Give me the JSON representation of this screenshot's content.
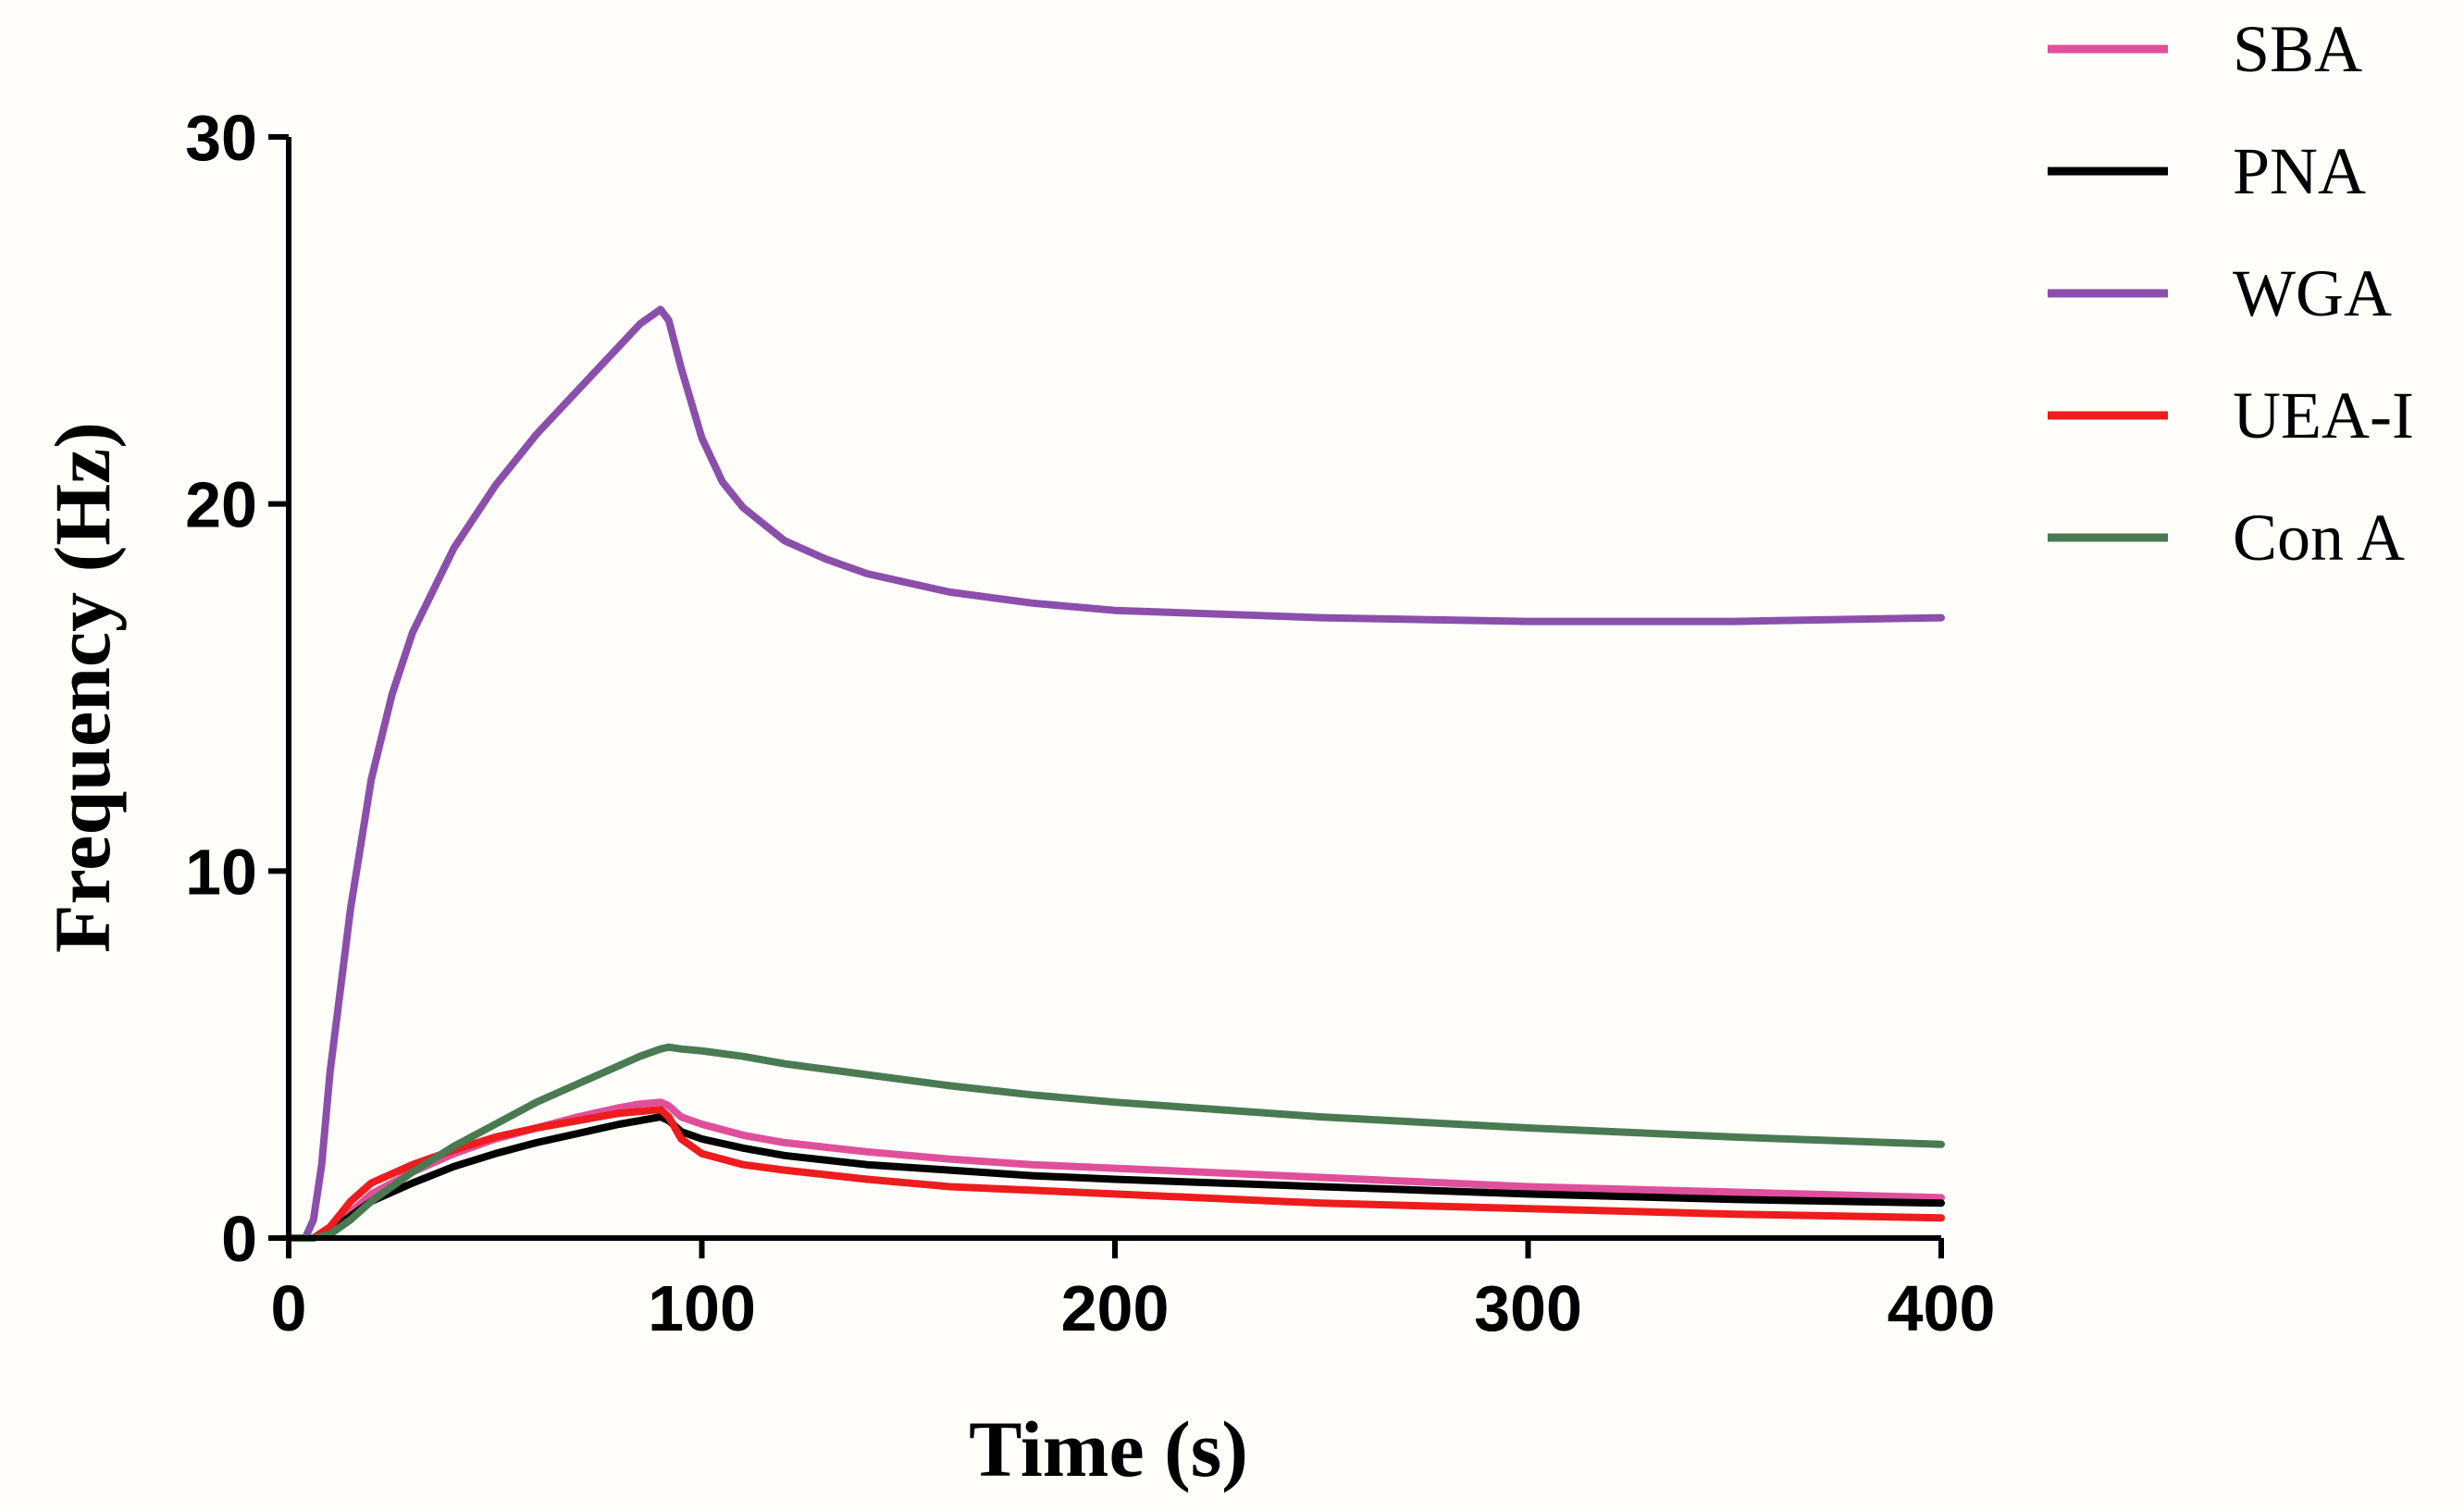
{
  "chart_data": {
    "type": "line",
    "title": "",
    "xlabel": "Time (s)",
    "ylabel": "Frequency (Hz)",
    "xlim": [
      0,
      400
    ],
    "ylim": [
      0,
      30
    ],
    "xticks": [
      0,
      100,
      200,
      300,
      400
    ],
    "yticks": [
      0,
      10,
      20,
      30
    ],
    "xtick_labels": [
      "0",
      "100",
      "200",
      "300",
      "400"
    ],
    "ytick_labels": [
      "0",
      "10",
      "20",
      "30"
    ],
    "grid": false,
    "legend_position": "top-right",
    "series": [
      {
        "name": "SBA",
        "color": "#e0509a",
        "x": [
          0,
          6,
          10,
          15,
          20,
          30,
          40,
          50,
          60,
          70,
          80,
          85,
          90,
          92,
          95,
          100,
          110,
          120,
          140,
          160,
          180,
          200,
          250,
          300,
          350,
          400
        ],
        "y": [
          0,
          0,
          0.2,
          0.7,
          1.2,
          1.8,
          2.3,
          2.7,
          3.0,
          3.3,
          3.55,
          3.65,
          3.7,
          3.6,
          3.3,
          3.1,
          2.8,
          2.6,
          2.35,
          2.15,
          2.0,
          1.9,
          1.65,
          1.4,
          1.25,
          1.1
        ]
      },
      {
        "name": "PNA",
        "color": "#000000",
        "x": [
          0,
          6,
          10,
          15,
          20,
          30,
          40,
          50,
          60,
          70,
          80,
          85,
          90,
          92,
          95,
          100,
          110,
          120,
          140,
          160,
          180,
          200,
          250,
          300,
          350,
          400
        ],
        "y": [
          0,
          0,
          0.2,
          0.6,
          1.0,
          1.5,
          1.95,
          2.3,
          2.6,
          2.85,
          3.1,
          3.2,
          3.3,
          3.2,
          2.9,
          2.7,
          2.45,
          2.25,
          2.0,
          1.85,
          1.7,
          1.6,
          1.4,
          1.2,
          1.05,
          0.95
        ]
      },
      {
        "name": "WGA",
        "color": "#8b4fab",
        "x": [
          0,
          4,
          6,
          8,
          10,
          15,
          20,
          25,
          30,
          40,
          50,
          60,
          70,
          80,
          85,
          90,
          92,
          95,
          100,
          105,
          110,
          120,
          130,
          140,
          160,
          180,
          200,
          250,
          300,
          350,
          400
        ],
        "y": [
          0,
          0,
          0.5,
          2.0,
          4.5,
          9.0,
          12.5,
          14.8,
          16.5,
          18.8,
          20.5,
          21.9,
          23.1,
          24.3,
          24.9,
          25.3,
          25.0,
          23.7,
          21.8,
          20.6,
          19.9,
          19.0,
          18.5,
          18.1,
          17.6,
          17.3,
          17.1,
          16.9,
          16.8,
          16.8,
          16.9
        ]
      },
      {
        "name": "UEA-I",
        "color": "#ee1c1c",
        "x": [
          0,
          6,
          10,
          15,
          20,
          30,
          40,
          50,
          60,
          70,
          80,
          85,
          90,
          92,
          95,
          100,
          110,
          120,
          140,
          160,
          180,
          200,
          250,
          300,
          350,
          400
        ],
        "y": [
          0,
          0,
          0.3,
          1.0,
          1.5,
          2.0,
          2.4,
          2.75,
          3.0,
          3.2,
          3.4,
          3.45,
          3.5,
          3.3,
          2.7,
          2.3,
          2.0,
          1.85,
          1.6,
          1.4,
          1.3,
          1.2,
          0.95,
          0.8,
          0.65,
          0.55
        ]
      },
      {
        "name": "Con A",
        "color": "#4a7a52",
        "x": [
          0,
          6,
          10,
          15,
          20,
          30,
          40,
          50,
          60,
          70,
          80,
          85,
          90,
          92,
          95,
          100,
          110,
          120,
          140,
          160,
          180,
          200,
          250,
          300,
          350,
          400
        ],
        "y": [
          0,
          0,
          0.1,
          0.5,
          1.0,
          1.8,
          2.5,
          3.1,
          3.7,
          4.2,
          4.7,
          4.95,
          5.15,
          5.2,
          5.15,
          5.1,
          4.95,
          4.75,
          4.45,
          4.15,
          3.9,
          3.7,
          3.3,
          3.0,
          2.75,
          2.55
        ]
      }
    ]
  }
}
